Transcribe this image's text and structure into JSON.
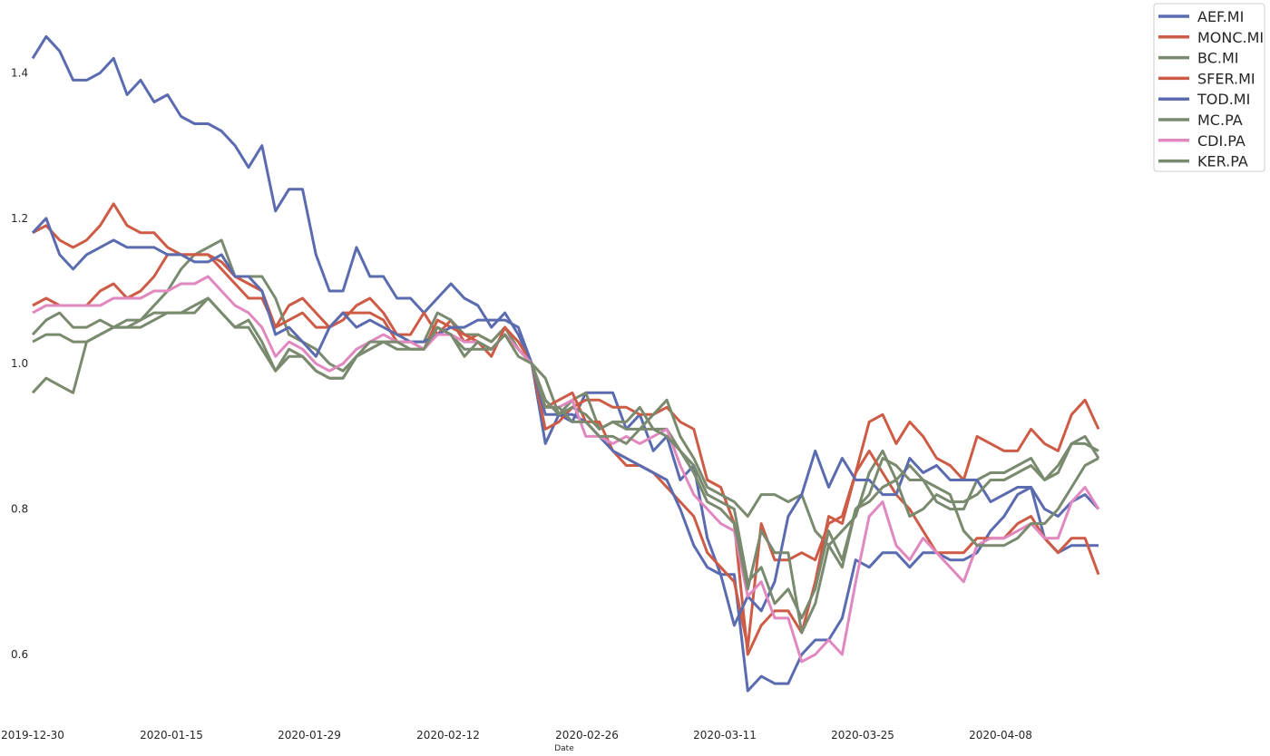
{
  "chart_data": {
    "type": "line",
    "xlabel": "Date",
    "ylabel": "",
    "grid": false,
    "legend_position": "top-right, outside plot",
    "ylim": [
      0.53,
      1.5
    ],
    "y_ticks": [
      0.6,
      0.8,
      1.0,
      1.2,
      1.4
    ],
    "y_tick_labels": [
      "0.6",
      "0.8",
      "1.0",
      "1.2",
      "1.4"
    ],
    "x_tick_labels": [
      "2019-12-30",
      "2020-01-15",
      "2020-01-29",
      "2020-02-12",
      "2020-02-26",
      "2020-03-11",
      "2020-03-25",
      "2020-04-08"
    ],
    "series": [
      {
        "name": "AEF.MI",
        "color": "#5b6bb0",
        "values": [
          1.42,
          1.45,
          1.43,
          1.39,
          1.39,
          1.4,
          1.42,
          1.37,
          1.39,
          1.36,
          1.37,
          1.34,
          1.33,
          1.33,
          1.32,
          1.3,
          1.27,
          1.3,
          1.21,
          1.24,
          1.24,
          1.15,
          1.1,
          1.1,
          1.16,
          1.12,
          1.12,
          1.09,
          1.09,
          1.07,
          1.09,
          1.11,
          1.09,
          1.08,
          1.05,
          1.07,
          1.04,
          1.0,
          0.89,
          0.93,
          0.92,
          0.96,
          0.96,
          0.96,
          0.91,
          0.93,
          0.88,
          0.9,
          0.84,
          0.86,
          0.76,
          0.71,
          0.71,
          0.55,
          0.57,
          0.56,
          0.56,
          0.6,
          0.62,
          0.62,
          0.65,
          0.73,
          0.72,
          0.74,
          0.74,
          0.72,
          0.74,
          0.74,
          0.73,
          0.73,
          0.74,
          0.77,
          0.79,
          0.82,
          0.83,
          0.76,
          0.74,
          0.75,
          0.75,
          0.75
        ]
      },
      {
        "name": "MONC.MI",
        "color": "#cd5b45",
        "values": [
          1.18,
          1.19,
          1.17,
          1.16,
          1.17,
          1.19,
          1.22,
          1.19,
          1.18,
          1.18,
          1.16,
          1.15,
          1.15,
          1.15,
          1.14,
          1.12,
          1.11,
          1.1,
          1.05,
          1.08,
          1.09,
          1.07,
          1.05,
          1.06,
          1.08,
          1.09,
          1.07,
          1.04,
          1.04,
          1.07,
          1.04,
          1.06,
          1.03,
          1.04,
          1.03,
          1.05,
          1.02,
          1.0,
          0.91,
          0.92,
          0.94,
          0.95,
          0.95,
          0.94,
          0.94,
          0.93,
          0.93,
          0.94,
          0.92,
          0.91,
          0.84,
          0.83,
          0.78,
          0.6,
          0.64,
          0.66,
          0.66,
          0.63,
          0.7,
          0.79,
          0.78,
          0.85,
          0.92,
          0.93,
          0.89,
          0.92,
          0.9,
          0.87,
          0.86,
          0.84,
          0.9,
          0.89,
          0.88,
          0.88,
          0.91,
          0.89,
          0.88,
          0.93,
          0.95,
          0.91
        ]
      },
      {
        "name": "BC.MI",
        "color": "#7a8a6e",
        "values": [
          0.96,
          0.98,
          0.97,
          0.96,
          1.03,
          1.04,
          1.05,
          1.06,
          1.06,
          1.08,
          1.1,
          1.13,
          1.15,
          1.16,
          1.17,
          1.12,
          1.12,
          1.12,
          1.09,
          1.04,
          1.03,
          1.02,
          1.0,
          0.99,
          1.01,
          1.02,
          1.03,
          1.03,
          1.03,
          1.03,
          1.07,
          1.06,
          1.04,
          1.04,
          1.03,
          1.05,
          1.02,
          1.0,
          0.98,
          0.93,
          0.95,
          0.96,
          0.91,
          0.92,
          0.91,
          0.91,
          0.93,
          0.95,
          0.9,
          0.87,
          0.83,
          0.82,
          0.81,
          0.79,
          0.82,
          0.82,
          0.81,
          0.82,
          0.77,
          0.75,
          0.77,
          0.79,
          0.85,
          0.88,
          0.84,
          0.86,
          0.84,
          0.81,
          0.8,
          0.8,
          0.84,
          0.85,
          0.85,
          0.86,
          0.87,
          0.84,
          0.85,
          0.89,
          0.89,
          0.88
        ]
      },
      {
        "name": "SFER.MI",
        "color": "#cd5b45",
        "values": [
          1.08,
          1.09,
          1.08,
          1.08,
          1.08,
          1.1,
          1.11,
          1.09,
          1.1,
          1.12,
          1.15,
          1.15,
          1.15,
          1.15,
          1.13,
          1.11,
          1.09,
          1.09,
          1.05,
          1.06,
          1.07,
          1.05,
          1.05,
          1.07,
          1.07,
          1.07,
          1.06,
          1.03,
          1.03,
          1.02,
          1.06,
          1.05,
          1.04,
          1.03,
          1.01,
          1.05,
          1.03,
          1.0,
          0.94,
          0.95,
          0.96,
          0.92,
          0.92,
          0.88,
          0.86,
          0.86,
          0.85,
          0.83,
          0.81,
          0.79,
          0.74,
          0.72,
          0.7,
          0.61,
          0.78,
          0.73,
          0.73,
          0.74,
          0.73,
          0.78,
          0.79,
          0.85,
          0.88,
          0.85,
          0.82,
          0.8,
          0.77,
          0.74,
          0.74,
          0.74,
          0.76,
          0.76,
          0.76,
          0.78,
          0.79,
          0.76,
          0.74,
          0.76,
          0.76,
          0.71
        ]
      },
      {
        "name": "TOD.MI",
        "color": "#5b6bb0",
        "values": [
          1.18,
          1.2,
          1.15,
          1.13,
          1.15,
          1.16,
          1.17,
          1.16,
          1.16,
          1.16,
          1.15,
          1.15,
          1.14,
          1.14,
          1.15,
          1.12,
          1.12,
          1.1,
          1.04,
          1.05,
          1.03,
          1.01,
          1.05,
          1.07,
          1.05,
          1.06,
          1.05,
          1.04,
          1.03,
          1.03,
          1.04,
          1.05,
          1.05,
          1.06,
          1.06,
          1.06,
          1.05,
          1.0,
          0.93,
          0.93,
          0.93,
          0.92,
          0.9,
          0.88,
          0.87,
          0.86,
          0.85,
          0.84,
          0.8,
          0.75,
          0.72,
          0.71,
          0.64,
          0.68,
          0.66,
          0.7,
          0.79,
          0.82,
          0.88,
          0.83,
          0.87,
          0.84,
          0.84,
          0.82,
          0.82,
          0.87,
          0.85,
          0.86,
          0.84,
          0.84,
          0.84,
          0.81,
          0.82,
          0.83,
          0.83,
          0.8,
          0.79,
          0.81,
          0.82,
          0.8
        ]
      },
      {
        "name": "MC.PA",
        "color": "#7a8a6e",
        "values": [
          1.04,
          1.06,
          1.07,
          1.05,
          1.05,
          1.06,
          1.05,
          1.05,
          1.05,
          1.06,
          1.07,
          1.07,
          1.08,
          1.09,
          1.07,
          1.05,
          1.06,
          1.03,
          0.99,
          1.01,
          1.01,
          0.99,
          0.98,
          0.98,
          1.01,
          1.02,
          1.03,
          1.02,
          1.02,
          1.02,
          1.05,
          1.04,
          1.02,
          1.02,
          1.02,
          1.04,
          1.02,
          1.0,
          0.95,
          0.93,
          0.94,
          0.93,
          0.91,
          0.92,
          0.92,
          0.94,
          0.91,
          0.91,
          0.88,
          0.86,
          0.82,
          0.81,
          0.8,
          0.7,
          0.72,
          0.67,
          0.69,
          0.65,
          0.69,
          0.77,
          0.73,
          0.8,
          0.81,
          0.83,
          0.84,
          0.79,
          0.8,
          0.82,
          0.81,
          0.81,
          0.82,
          0.84,
          0.84,
          0.85,
          0.86,
          0.84,
          0.86,
          0.89,
          0.9,
          0.87
        ]
      },
      {
        "name": "CDI.PA",
        "color": "#e088bf",
        "values": [
          1.07,
          1.08,
          1.08,
          1.08,
          1.08,
          1.08,
          1.09,
          1.09,
          1.09,
          1.1,
          1.1,
          1.11,
          1.11,
          1.12,
          1.1,
          1.08,
          1.07,
          1.05,
          1.01,
          1.03,
          1.02,
          1.0,
          0.99,
          1.0,
          1.02,
          1.03,
          1.04,
          1.03,
          1.03,
          1.02,
          1.04,
          1.04,
          1.03,
          1.03,
          1.02,
          1.04,
          1.02,
          1.0,
          0.94,
          0.94,
          0.95,
          0.9,
          0.9,
          0.89,
          0.9,
          0.89,
          0.9,
          0.91,
          0.86,
          0.82,
          0.8,
          0.78,
          0.77,
          0.68,
          0.7,
          0.65,
          0.65,
          0.59,
          0.6,
          0.62,
          0.6,
          0.7,
          0.79,
          0.81,
          0.75,
          0.73,
          0.76,
          0.74,
          0.72,
          0.7,
          0.75,
          0.76,
          0.76,
          0.77,
          0.78,
          0.76,
          0.76,
          0.81,
          0.83,
          0.8
        ]
      },
      {
        "name": "KER.PA",
        "color": "#7a8a6e",
        "values": [
          1.03,
          1.04,
          1.04,
          1.03,
          1.03,
          1.04,
          1.05,
          1.05,
          1.06,
          1.07,
          1.07,
          1.07,
          1.07,
          1.09,
          1.07,
          1.05,
          1.05,
          1.02,
          0.99,
          1.02,
          1.01,
          0.99,
          0.98,
          0.98,
          1.01,
          1.03,
          1.03,
          1.03,
          1.02,
          1.02,
          1.05,
          1.04,
          1.01,
          1.03,
          1.02,
          1.04,
          1.01,
          1.0,
          0.94,
          0.94,
          0.92,
          0.92,
          0.9,
          0.9,
          0.89,
          0.91,
          0.91,
          0.9,
          0.88,
          0.85,
          0.81,
          0.8,
          0.78,
          0.69,
          0.77,
          0.74,
          0.74,
          0.63,
          0.67,
          0.75,
          0.72,
          0.8,
          0.82,
          0.87,
          0.86,
          0.84,
          0.84,
          0.83,
          0.82,
          0.77,
          0.75,
          0.75,
          0.75,
          0.76,
          0.78,
          0.78,
          0.8,
          0.83,
          0.86,
          0.87
        ]
      }
    ]
  }
}
